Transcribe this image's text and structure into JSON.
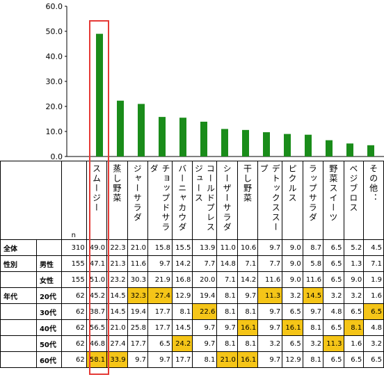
{
  "chart_data": {
    "type": "bar",
    "categories": [
      "スムージー",
      "蒸し野菜",
      "ジャーサラダ",
      "チョップドサラダ",
      "バーニャカウダ",
      "コールドプレスジュース",
      "シーザーサラダ",
      "干し野菜",
      "デトックススープ",
      "ピクルス",
      "ラップサラダ",
      "野菜スイーツ",
      "ベジブロス",
      "その他："
    ],
    "values": [
      49.0,
      22.3,
      21.0,
      15.8,
      15.5,
      13.9,
      11.0,
      10.6,
      9.7,
      9.0,
      8.7,
      6.5,
      5.2,
      4.5
    ],
    "ylim": [
      0,
      60
    ],
    "yticks": [
      "0.0",
      "10.0",
      "20.0",
      "30.0",
      "40.0",
      "50.0",
      "60.0"
    ],
    "bar_color": "#1a8c1a",
    "highlight_color": "#f5c518",
    "highlight_box_color": "#e53935"
  },
  "table": {
    "n_label": "n",
    "rows": [
      {
        "group": "全体",
        "sub": "",
        "n": "310",
        "values": [
          "49.0",
          "22.3",
          "21.0",
          "15.8",
          "15.5",
          "13.9",
          "11.0",
          "10.6",
          "9.7",
          "9.0",
          "8.7",
          "6.5",
          "5.2",
          "4.5"
        ],
        "hl": []
      },
      {
        "group": "性別",
        "sub": "男性",
        "n": "155",
        "values": [
          "47.1",
          "21.3",
          "11.6",
          "9.7",
          "14.2",
          "7.7",
          "14.8",
          "7.1",
          "7.7",
          "9.0",
          "5.8",
          "6.5",
          "1.3",
          "7.1"
        ],
        "hl": []
      },
      {
        "group": "",
        "sub": "女性",
        "n": "155",
        "values": [
          "51.0",
          "23.2",
          "30.3",
          "21.9",
          "16.8",
          "20.0",
          "7.1",
          "14.2",
          "11.6",
          "9.0",
          "11.6",
          "6.5",
          "9.0",
          "1.9"
        ],
        "hl": []
      },
      {
        "group": "年代",
        "sub": "20代",
        "n": "62",
        "values": [
          "45.2",
          "14.5",
          "32.3",
          "27.4",
          "12.9",
          "19.4",
          "8.1",
          "9.7",
          "11.3",
          "3.2",
          "14.5",
          "3.2",
          "3.2",
          "1.6"
        ],
        "hl": [
          2,
          3,
          8,
          10
        ]
      },
      {
        "group": "",
        "sub": "30代",
        "n": "62",
        "values": [
          "38.7",
          "14.5",
          "19.4",
          "17.7",
          "8.1",
          "22.6",
          "8.1",
          "8.1",
          "9.7",
          "6.5",
          "9.7",
          "4.8",
          "6.5",
          "6.5"
        ],
        "hl": [
          5,
          13
        ]
      },
      {
        "group": "",
        "sub": "40代",
        "n": "62",
        "values": [
          "56.5",
          "21.0",
          "25.8",
          "17.7",
          "14.5",
          "9.7",
          "9.7",
          "16.1",
          "9.7",
          "16.1",
          "8.1",
          "6.5",
          "8.1",
          "4.8"
        ],
        "hl": [
          7,
          9,
          12
        ]
      },
      {
        "group": "",
        "sub": "50代",
        "n": "62",
        "values": [
          "46.8",
          "27.4",
          "17.7",
          "6.5",
          "24.2",
          "9.7",
          "8.1",
          "8.1",
          "3.2",
          "6.5",
          "3.2",
          "11.3",
          "1.6",
          "3.2"
        ],
        "hl": [
          4,
          11
        ]
      },
      {
        "group": "",
        "sub": "60代",
        "n": "62",
        "values": [
          "58.1",
          "33.9",
          "9.7",
          "9.7",
          "17.7",
          "8.1",
          "21.0",
          "16.1",
          "9.7",
          "12.9",
          "8.1",
          "6.5",
          "6.5",
          "6.5"
        ],
        "hl": [
          0,
          1,
          6,
          7
        ]
      }
    ]
  }
}
